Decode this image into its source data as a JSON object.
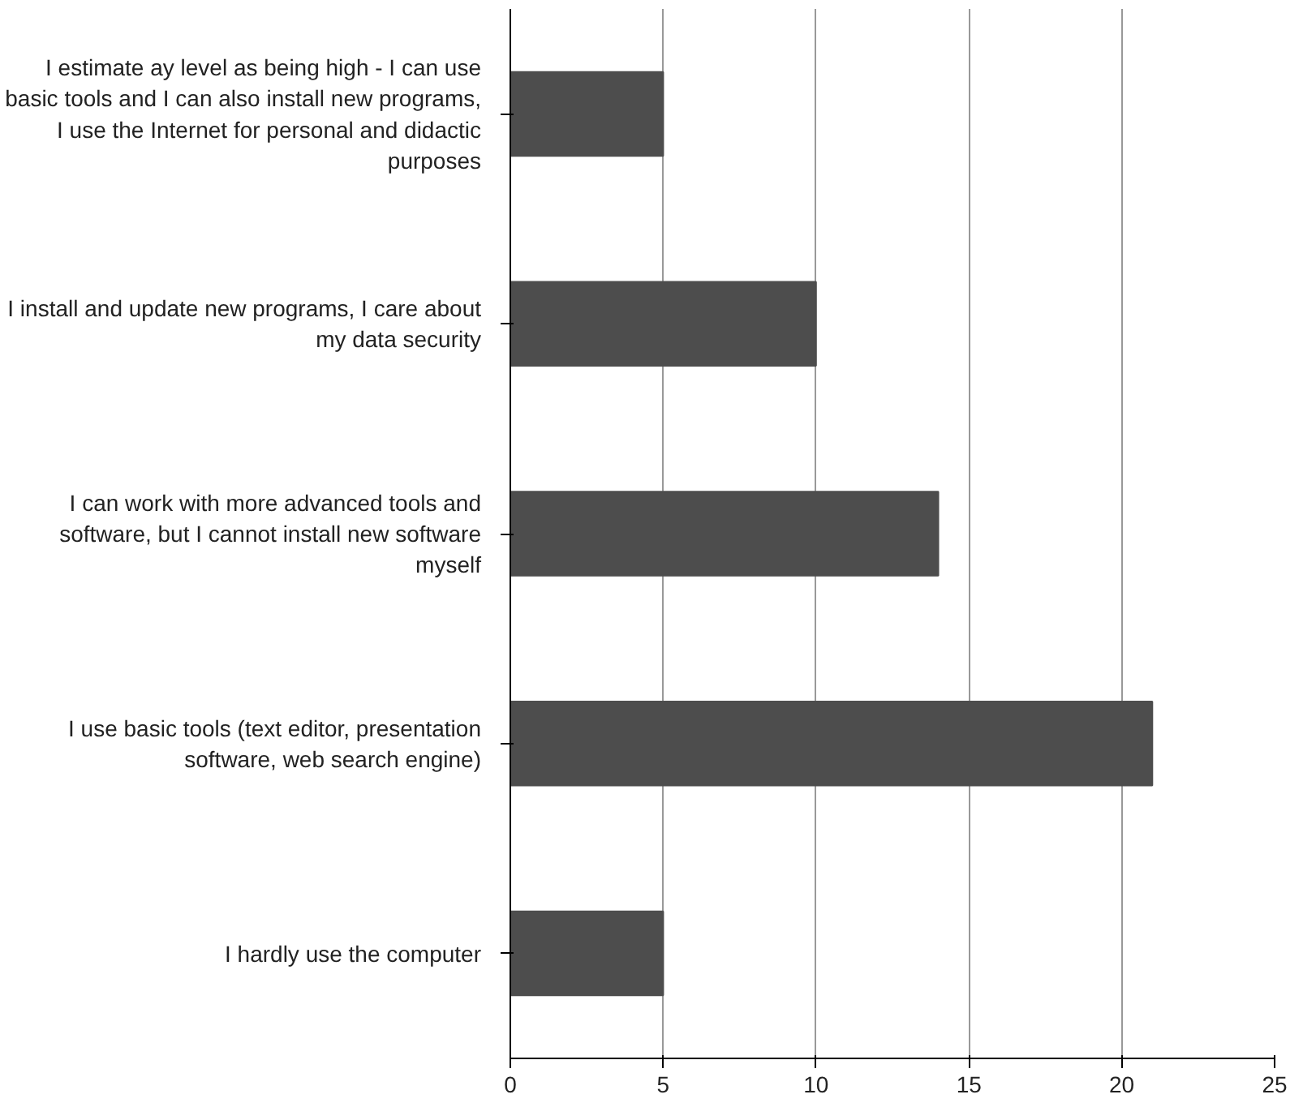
{
  "chart_data": {
    "type": "bar",
    "orientation": "horizontal",
    "categories": [
      "I estimate ay level as being high - I can use basic tools and I can also install new programs, I use the Internet for personal and didactic purposes",
      "I install and update new programs, I care about my data security",
      "I can work with more advanced tools and software, but I cannot install new software myself",
      "I use basic tools (text editor, presentation software, web search engine)",
      "I hardly use the computer"
    ],
    "values": [
      5,
      10,
      14,
      21,
      5
    ],
    "color": "#4d4d4d",
    "xlim": [
      0,
      25
    ],
    "xticks": [
      0,
      5,
      10,
      15,
      20,
      25
    ],
    "grid": "x"
  }
}
